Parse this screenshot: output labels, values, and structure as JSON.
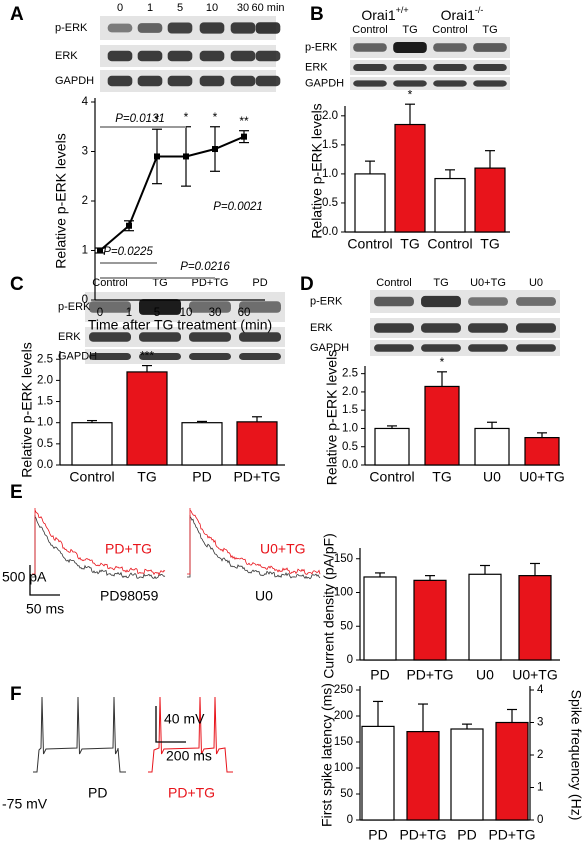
{
  "panels": [
    {
      "letter": "A",
      "lanes": [
        "0",
        "1",
        "5",
        "10",
        "30",
        "60 min"
      ],
      "rows": [
        "p-ERK",
        "ERK",
        "GAPDH"
      ]
    },
    {
      "letter": "B",
      "groups": [
        {
          "name": "Orai1",
          "sup": "+/+"
        },
        {
          "name": "Orai1",
          "sup": "-/-"
        }
      ],
      "lanes": [
        "Control",
        "TG",
        "Control",
        "TG"
      ],
      "rows": [
        "p-ERK",
        "ERK",
        "GAPDH"
      ]
    },
    {
      "letter": "C",
      "lanes": [
        "Control",
        "TG",
        "PD+TG",
        "PD"
      ],
      "rows": [
        "p-ERK",
        "ERK",
        "GAPDH"
      ]
    },
    {
      "letter": "D",
      "lanes": [
        "Control",
        "TG",
        "U0+TG",
        "U0"
      ],
      "rows": [
        "p-ERK",
        "ERK",
        "GAPDH"
      ]
    },
    {
      "letter": "E",
      "scale": [
        "500 pA",
        "50 ms"
      ],
      "traces": [
        {
          "label": "PD+TG",
          "control": "PD98059"
        },
        {
          "label": "U0+TG",
          "control": "U0"
        }
      ]
    },
    {
      "letter": "F",
      "scale": [
        "40 mV",
        "200 ms"
      ],
      "baseline": "-75 mV",
      "traces": [
        {
          "label": "PD"
        },
        {
          "label": "PD+TG"
        }
      ]
    }
  ],
  "chart_data": [
    {
      "type": "line",
      "ylabel": "Relative p-ERK levels",
      "xlabel": "Time after TG treatment (min)",
      "categories": [
        "0",
        "1",
        "5",
        "10",
        "30",
        "60"
      ],
      "values": [
        1,
        1.5,
        2.9,
        2.9,
        3.05,
        3.3
      ],
      "errors": [
        0.05,
        0.1,
        0.55,
        0.6,
        0.45,
        0.12
      ],
      "color": "#000000",
      "ylim": [
        0,
        4
      ],
      "yticks": [
        0,
        1,
        2,
        3,
        4
      ],
      "annotations": [
        {
          "index": 2,
          "text": "*"
        },
        {
          "index": 3,
          "text": "*"
        },
        {
          "index": 4,
          "text": "*"
        },
        {
          "index": 5,
          "text": "**"
        }
      ],
      "p_values": [
        "P=0.0131",
        "P=0.0225",
        "P=0.0216",
        "P=0.0021"
      ]
    },
    {
      "type": "bar",
      "ylabel": "Relative p-ERK levels",
      "categories": [
        "Control",
        "TG",
        "Control",
        "TG"
      ],
      "values": [
        1.0,
        1.85,
        0.92,
        1.1
      ],
      "errors": [
        0.22,
        0.35,
        0.15,
        0.3
      ],
      "colors": [
        "#ffffff",
        "#e8141b",
        "#ffffff",
        "#e8141b"
      ],
      "ylim": [
        0,
        2.1
      ],
      "yticks": [
        {
          "value": 0,
          "label": "0.0"
        },
        0.5,
        {
          "value": 1,
          "label": "1.0"
        },
        1.5,
        {
          "value": 2,
          "label": "2.0"
        }
      ],
      "annotations": [
        {
          "index": 1,
          "text": "*"
        }
      ]
    },
    {
      "type": "bar",
      "ylabel": "Relative p-ERK levels",
      "categories": [
        "Control",
        "TG",
        "PD",
        "PD+TG"
      ],
      "values": [
        1.0,
        2.2,
        1.0,
        1.02
      ],
      "errors": [
        0.05,
        0.15,
        0.03,
        0.12
      ],
      "colors": [
        "#ffffff",
        "#e8141b",
        "#ffffff",
        "#e8141b"
      ],
      "ylim": [
        0,
        2.6
      ],
      "yticks": [
        {
          "value": 0,
          "label": "0.0"
        },
        0.5,
        {
          "value": 1,
          "label": "1.0"
        },
        1.5,
        {
          "value": 2,
          "label": "2.0"
        },
        2.5
      ],
      "annotations": [
        {
          "index": 1,
          "text": "***"
        }
      ]
    },
    {
      "type": "bar",
      "ylabel": "Relative p-ERK levels",
      "categories": [
        "Control",
        "TG",
        "U0",
        "U0+TG"
      ],
      "values": [
        1.0,
        2.15,
        1.0,
        0.75
      ],
      "errors": [
        0.07,
        0.4,
        0.17,
        0.13
      ],
      "colors": [
        "#ffffff",
        "#e8141b",
        "#ffffff",
        "#e8141b"
      ],
      "ylim": [
        0,
        2.6
      ],
      "yticks": [
        {
          "value": 0,
          "label": "0.0"
        },
        0.5,
        {
          "value": 1,
          "label": "1.0"
        },
        1.5,
        {
          "value": 2,
          "label": "2.0"
        },
        2.5
      ],
      "annotations": [
        {
          "index": 1,
          "text": "*"
        }
      ]
    },
    {
      "type": "bar",
      "ylabel": "Current density (pA/pF)",
      "categories": [
        "PD",
        "PD+TG",
        "U0",
        "U0+TG"
      ],
      "values": [
        123,
        118,
        127,
        125
      ],
      "errors": [
        6,
        7,
        13,
        18
      ],
      "colors": [
        "#ffffff",
        "#e8141b",
        "#ffffff",
        "#e8141b"
      ],
      "ylim": [
        0,
        160
      ],
      "yticks": [
        0,
        50,
        100,
        150
      ]
    },
    {
      "type": "bar",
      "ylabel": "First spike latency (ms)",
      "y2label": "Spike frequency (Hz)",
      "categories": [
        "PD",
        "PD+TG",
        "PD",
        "PD+TG"
      ],
      "series": [
        {
          "values": [
            180,
            170,
            null,
            null
          ],
          "errors": [
            48,
            53,
            null,
            null
          ]
        },
        {
          "axis": "y2",
          "values": [
            null,
            null,
            2.8,
            3.0
          ],
          "errors": [
            null,
            null,
            0.15,
            0.4
          ]
        }
      ],
      "colors": [
        "#ffffff",
        "#e8141b",
        "#ffffff",
        "#e8141b"
      ],
      "ylim": [
        0,
        250
      ],
      "yticks": [
        0,
        50,
        100,
        150,
        200,
        250
      ],
      "y2lim": [
        0,
        4
      ],
      "y2ticks": [
        0,
        1,
        2,
        3,
        4
      ]
    }
  ]
}
